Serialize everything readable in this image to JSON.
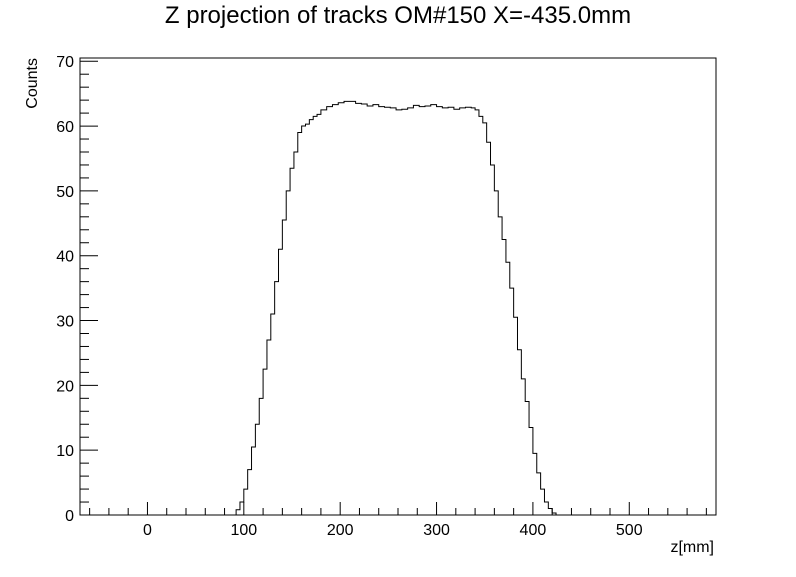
{
  "chart_data": {
    "type": "line",
    "title": "Z projection of tracks OM#150 X=-435.0mm",
    "xlabel": "z[mm]",
    "ylabel": "Counts",
    "xlim": [
      -70,
      590
    ],
    "ylim": [
      0,
      70.5
    ],
    "x_ticks": [
      0,
      100,
      200,
      300,
      400,
      500
    ],
    "y_ticks": [
      0,
      10,
      20,
      30,
      40,
      50,
      60,
      70
    ],
    "grid": false,
    "legend": "none",
    "series": [
      {
        "x": [
          -70,
          88,
          92,
          96,
          100,
          104,
          108,
          112,
          116,
          120,
          124,
          128,
          132,
          136,
          140,
          144,
          148,
          152,
          156,
          160,
          164,
          168,
          172,
          176,
          180,
          186,
          192,
          198,
          204,
          210,
          216,
          222,
          228,
          234,
          240,
          246,
          252,
          258,
          264,
          270,
          276,
          282,
          288,
          294,
          300,
          306,
          312,
          318,
          324,
          330,
          336,
          340,
          344,
          348,
          352,
          356,
          360,
          364,
          368,
          372,
          376,
          380,
          384,
          388,
          392,
          396,
          400,
          404,
          408,
          412,
          416,
          420,
          424,
          428,
          590
        ],
        "y": [
          0,
          0,
          0.8,
          2,
          4,
          7,
          10.5,
          14,
          18,
          22.5,
          27,
          31,
          36,
          41,
          45.5,
          50,
          53.5,
          56,
          59,
          60,
          60.3,
          61,
          61.5,
          61.8,
          62.5,
          63,
          63.3,
          63.6,
          63.8,
          63.8,
          63.5,
          63.4,
          63.1,
          63.3,
          63,
          62.9,
          62.8,
          62.5,
          62.6,
          62.8,
          63.2,
          63,
          63.1,
          63.3,
          63,
          62.8,
          62.9,
          62.6,
          62.8,
          62.9,
          62.8,
          62.5,
          61.5,
          60.5,
          57.5,
          54,
          50,
          46,
          42.5,
          39,
          35,
          30.5,
          25.5,
          21,
          17.5,
          13.5,
          9.5,
          6.5,
          4,
          2,
          1,
          0.3,
          0,
          0,
          0
        ]
      }
    ]
  }
}
